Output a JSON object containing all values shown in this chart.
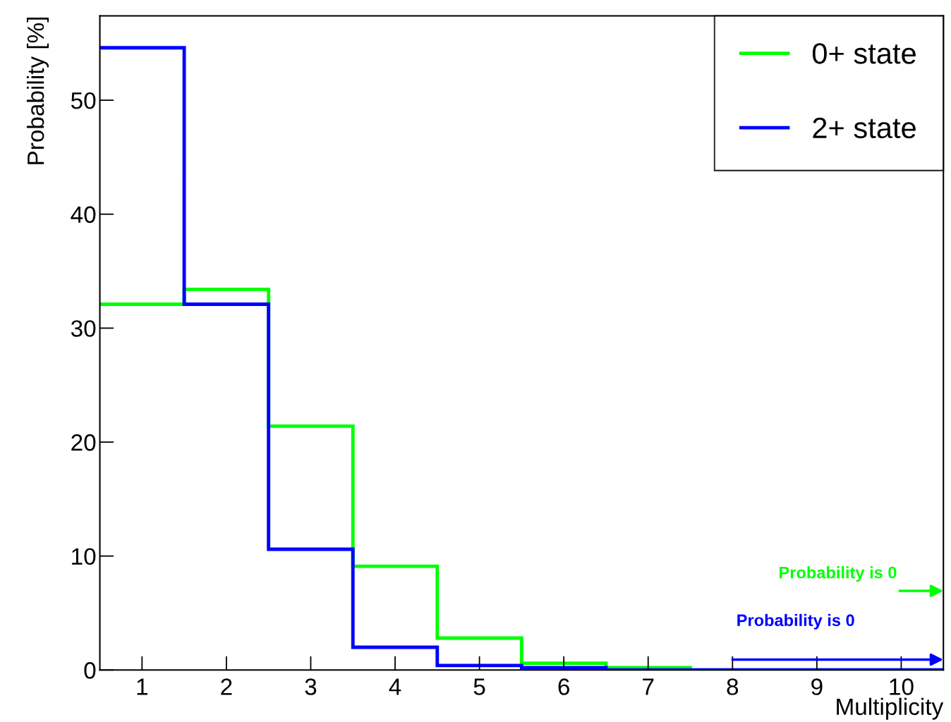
{
  "chart_data": {
    "type": "histogram",
    "xlabel": "Multiplicity",
    "ylabel": "Probability [%]",
    "bins": [
      0.5,
      1.5,
      2.5,
      3.5,
      4.5,
      5.5,
      6.5,
      7.5,
      8.5,
      9.5,
      10.5
    ],
    "series": [
      {
        "name": "0+ state",
        "color": "#00ff00",
        "values": [
          32.1,
          33.4,
          21.4,
          9.1,
          2.8,
          0.6,
          0.2,
          0,
          0,
          0
        ]
      },
      {
        "name": "2+ state",
        "color": "#0000ff",
        "values": [
          54.6,
          32.1,
          10.6,
          2.0,
          0.4,
          0.2,
          0,
          0,
          0,
          0
        ]
      }
    ],
    "annotations": [
      "Probability is 0",
      "Probability is 0"
    ],
    "xlim": [
      0.5,
      10.5
    ],
    "ylim": [
      0,
      57.4
    ],
    "xticks": [
      1,
      2,
      3,
      4,
      5,
      6,
      7,
      8,
      9,
      10
    ],
    "yticks": [
      0,
      10,
      20,
      30,
      40,
      50
    ],
    "grid": false,
    "legend": "top right"
  }
}
